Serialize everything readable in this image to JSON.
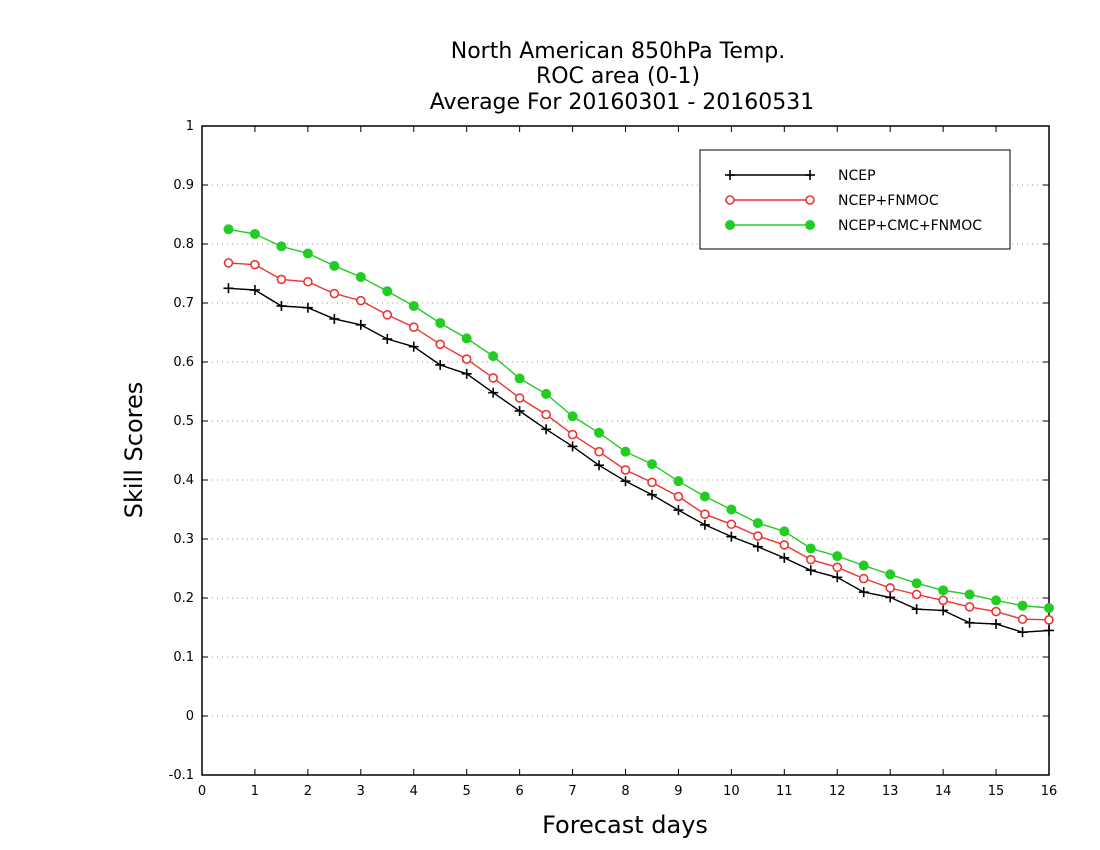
{
  "chart_data": {
    "type": "line",
    "title_lines": [
      "North American 850hPa Temp.",
      "ROC area (0-1)",
      "Average For 20160301 - 20160531"
    ],
    "xlabel": "Forecast days",
    "ylabel": "Skill Scores",
    "xlim": [
      0,
      16
    ],
    "ylim": [
      -0.1,
      1
    ],
    "x_ticks": [
      0,
      1,
      2,
      3,
      4,
      5,
      6,
      7,
      8,
      9,
      10,
      11,
      12,
      13,
      14,
      15,
      16
    ],
    "y_ticks": [
      -0.1,
      0,
      0.1,
      0.2,
      0.3,
      0.4,
      0.5,
      0.6,
      0.7,
      0.8,
      0.9,
      1
    ],
    "y_tick_labels": [
      "-0.1",
      "0",
      "0.1",
      "0.2",
      "0.3",
      "0.4",
      "0.5",
      "0.6",
      "0.7",
      "0.8",
      "0.9",
      "1"
    ],
    "grid": "horizontal dotted",
    "legend_position": "top-right",
    "x": [
      0.5,
      1,
      1.5,
      2,
      2.5,
      3,
      3.5,
      4,
      4.5,
      5,
      5.5,
      6,
      6.5,
      7,
      7.5,
      8,
      8.5,
      9,
      9.5,
      10,
      10.5,
      11,
      11.5,
      12,
      12.5,
      13,
      13.5,
      14,
      14.5,
      15,
      15.5,
      16
    ],
    "series": [
      {
        "name": "NCEP",
        "color": "#000000",
        "marker": "plus",
        "values": [
          0.725,
          0.722,
          0.695,
          0.692,
          0.673,
          0.663,
          0.639,
          0.626,
          0.595,
          0.58,
          0.548,
          0.517,
          0.486,
          0.457,
          0.425,
          0.398,
          0.375,
          0.349,
          0.324,
          0.304,
          0.287,
          0.268,
          0.247,
          0.235,
          0.21,
          0.201,
          0.181,
          0.179,
          0.158,
          0.156,
          0.142,
          0.145
        ]
      },
      {
        "name": "NCEP+FNMOC",
        "color": "#ee3333",
        "marker": "open-circle",
        "values": [
          0.768,
          0.765,
          0.74,
          0.736,
          0.716,
          0.704,
          0.68,
          0.659,
          0.63,
          0.605,
          0.573,
          0.539,
          0.511,
          0.477,
          0.448,
          0.417,
          0.396,
          0.372,
          0.342,
          0.325,
          0.305,
          0.29,
          0.265,
          0.252,
          0.233,
          0.217,
          0.206,
          0.196,
          0.185,
          0.177,
          0.164,
          0.163
        ]
      },
      {
        "name": "NCEP+CMC+FNMOC",
        "color": "#22cc22",
        "marker": "filled-circle",
        "values": [
          0.825,
          0.817,
          0.796,
          0.784,
          0.763,
          0.744,
          0.72,
          0.695,
          0.666,
          0.64,
          0.61,
          0.572,
          0.546,
          0.508,
          0.48,
          0.448,
          0.427,
          0.398,
          0.372,
          0.35,
          0.327,
          0.313,
          0.284,
          0.271,
          0.255,
          0.24,
          0.225,
          0.213,
          0.206,
          0.196,
          0.187,
          0.183
        ]
      }
    ]
  }
}
